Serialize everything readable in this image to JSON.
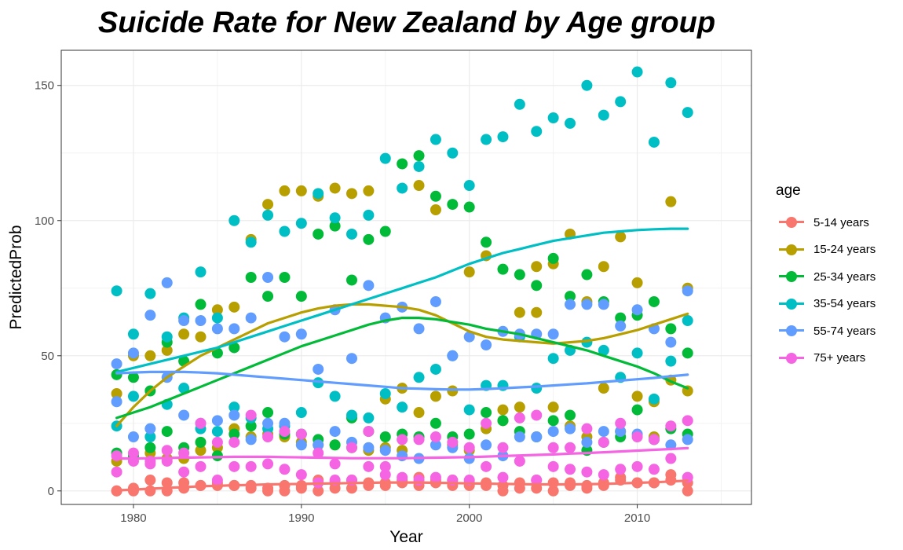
{
  "chart_data": {
    "type": "scatter",
    "title": "Suicide Rate for New Zealand by Age group",
    "xlabel": "Year",
    "ylabel": "PredictedProb",
    "xlim": [
      1975.7,
      2016.8
    ],
    "ylim": [
      -5,
      163
    ],
    "x_ticks": [
      1980,
      1990,
      2000,
      2010
    ],
    "y_ticks": [
      0,
      50,
      100,
      150
    ],
    "grid": true,
    "legend": {
      "title": "age",
      "position": "right"
    },
    "years": [
      1979,
      1980,
      1981,
      1982,
      1983,
      1984,
      1985,
      1986,
      1987,
      1988,
      1989,
      1990,
      1991,
      1992,
      1993,
      1994,
      1995,
      1996,
      1997,
      1998,
      1999,
      2000,
      2001,
      2002,
      2003,
      2004,
      2005,
      2006,
      2007,
      2008,
      2009,
      2010,
      2011,
      2012,
      2013
    ],
    "series": [
      {
        "name": "5-14 years",
        "color": "#F8766D",
        "male": [
          0,
          1,
          4,
          3,
          3,
          2,
          3,
          2,
          2,
          1,
          2,
          2,
          4,
          3,
          4,
          3,
          3,
          4,
          5,
          4,
          4,
          3,
          3,
          2,
          3,
          4,
          3,
          3,
          2,
          3,
          5,
          3,
          3,
          4,
          3
        ],
        "female": [
          0,
          0,
          0,
          0,
          1,
          2,
          2,
          2,
          1,
          0,
          0,
          1,
          0,
          1,
          1,
          2,
          2,
          3,
          2,
          3,
          2,
          2,
          2,
          0,
          1,
          1,
          0,
          2,
          1,
          2,
          4,
          3,
          3,
          6,
          0
        ],
        "smooth": [
          0.2,
          0.5,
          0.8,
          1.1,
          1.4,
          1.7,
          1.9,
          2.1,
          2.2,
          2.4,
          2.5,
          2.6,
          2.7,
          2.8,
          2.9,
          3.0,
          3.1,
          3.1,
          3.1,
          3.0,
          2.9,
          2.8,
          2.7,
          2.6,
          2.5,
          2.4,
          2.4,
          2.4,
          2.5,
          2.6,
          2.8,
          3.0,
          3.2,
          3.5,
          3.8
        ]
      },
      {
        "name": "15-24 years",
        "color": "#B79F00",
        "male": [
          36,
          50,
          50,
          52,
          58,
          57,
          67,
          68,
          93,
          106,
          111,
          111,
          109,
          112,
          110,
          111,
          34,
          38,
          113,
          104,
          37,
          81,
          87,
          30,
          31,
          83,
          84,
          24,
          70,
          83,
          94,
          77,
          33,
          107,
          75
        ],
        "female": [
          11,
          12,
          14,
          12,
          12,
          15,
          16,
          23,
          20,
          21,
          20,
          18,
          17,
          17,
          16,
          15,
          16,
          15,
          29,
          35,
          17,
          15,
          23,
          26,
          66,
          66,
          31,
          95,
          20,
          38,
          22,
          35,
          20,
          41,
          37
        ],
        "smooth": [
          24,
          31,
          37,
          42,
          46,
          50,
          53,
          56,
          59,
          62,
          64,
          66,
          67.5,
          68.5,
          69,
          69,
          68.5,
          68,
          67,
          65,
          62,
          59,
          57,
          56,
          55.5,
          55,
          54.5,
          55,
          55.5,
          56.5,
          58,
          59.5,
          61.5,
          63.5,
          65.5
        ]
      },
      {
        "name": "25-34 years",
        "color": "#00BA38",
        "male": [
          43,
          42,
          37,
          55,
          48,
          69,
          51,
          53,
          79,
          72,
          79,
          72,
          95,
          98,
          78,
          93,
          96,
          121,
          124,
          109,
          106,
          105,
          92,
          82,
          80,
          76,
          86,
          72,
          80,
          70,
          64,
          65,
          70,
          60,
          51
        ],
        "female": [
          14,
          13,
          16,
          22,
          16,
          18,
          13,
          21,
          24,
          29,
          21,
          21,
          19,
          17,
          27,
          22,
          20,
          21,
          20,
          25,
          20,
          21,
          29,
          26,
          22,
          20,
          26,
          28,
          15,
          18,
          20,
          30,
          19,
          23,
          21
        ],
        "smooth": [
          27,
          29,
          31,
          33.5,
          36,
          38.5,
          41,
          43.5,
          46,
          48.5,
          51,
          53.5,
          55.5,
          57.5,
          59.5,
          61.5,
          63,
          64,
          64,
          63.5,
          62.5,
          61.5,
          60,
          59,
          58,
          56.5,
          55,
          53.5,
          52,
          50,
          48,
          46,
          43.5,
          40.5,
          38
        ]
      },
      {
        "name": "35-54 years",
        "color": "#00BFC4",
        "male": [
          74,
          58,
          73,
          57,
          64,
          81,
          64,
          100,
          92,
          102,
          96,
          99,
          110,
          101,
          95,
          102,
          123,
          112,
          120,
          130,
          125,
          113,
          130,
          131,
          143,
          133,
          138,
          136,
          150,
          139,
          144,
          155,
          129,
          151,
          140
        ],
        "female": [
          24,
          35,
          20,
          32,
          38,
          23,
          22,
          31,
          27,
          23,
          24,
          29,
          40,
          35,
          28,
          27,
          36,
          31,
          42,
          45,
          50,
          30,
          39,
          39,
          57,
          38,
          49,
          52,
          55,
          52,
          42,
          51,
          34,
          48,
          63
        ],
        "smooth": [
          44,
          45.5,
          47,
          48.5,
          50,
          51.5,
          53,
          55,
          57,
          59,
          61,
          63,
          65,
          67,
          69,
          71,
          73,
          75,
          77,
          79,
          81.5,
          84,
          86,
          88,
          89.5,
          91,
          92.5,
          93.5,
          94.5,
          95.5,
          96,
          96.5,
          96.8,
          97,
          97
        ]
      },
      {
        "name": "55-74 years",
        "color": "#619CFF",
        "male": [
          47,
          51,
          65,
          77,
          63,
          63,
          60,
          60,
          64,
          79,
          57,
          58,
          45,
          67,
          49,
          76,
          64,
          68,
          60,
          70,
          50,
          57,
          54,
          59,
          58,
          58,
          58,
          69,
          69,
          69,
          61,
          67,
          60,
          55,
          74
        ],
        "female": [
          33,
          20,
          23,
          42,
          28,
          25,
          26,
          28,
          19,
          25,
          25,
          17,
          17,
          22,
          18,
          16,
          15,
          13,
          12,
          17,
          16,
          12,
          17,
          13,
          20,
          20,
          22,
          23,
          18,
          22,
          22,
          21,
          19,
          17,
          19
        ],
        "smooth": [
          43.5,
          43.8,
          44,
          44,
          44,
          43.8,
          43.5,
          43,
          42.5,
          42,
          41.5,
          41,
          40.5,
          40,
          39.5,
          39,
          38.5,
          38,
          37.8,
          37.6,
          37.5,
          37.5,
          37.7,
          38,
          38.3,
          38.6,
          39,
          39.4,
          39.8,
          40.3,
          40.8,
          41.3,
          41.8,
          42.4,
          43
        ]
      },
      {
        "name": "75+ years",
        "color": "#F564E3",
        "male": [
          7,
          14,
          11,
          15,
          14,
          25,
          18,
          18,
          28,
          20,
          22,
          21,
          14,
          10,
          16,
          22,
          9,
          19,
          19,
          20,
          18,
          16,
          25,
          16,
          27,
          28,
          16,
          16,
          23,
          18,
          25,
          20,
          19,
          24,
          26
        ],
        "female": [
          13,
          11,
          10,
          11,
          7,
          9,
          4,
          9,
          9,
          10,
          8,
          6,
          3,
          4,
          4,
          9,
          6,
          5,
          4,
          5,
          4,
          4,
          9,
          5,
          11,
          4,
          9,
          8,
          7,
          6,
          8,
          9,
          8,
          12,
          5
        ],
        "smooth": [
          12.0,
          12.0,
          12.1,
          12.2,
          12.3,
          12.4,
          12.5,
          12.6,
          12.6,
          12.6,
          12.5,
          12.4,
          12.3,
          12.2,
          12.1,
          12.1,
          12.1,
          12.1,
          12.2,
          12.3,
          12.4,
          12.5,
          12.7,
          12.9,
          13.1,
          13.3,
          13.5,
          13.8,
          14.0,
          14.3,
          14.6,
          14.9,
          15.2,
          15.5,
          15.8
        ]
      }
    ]
  }
}
